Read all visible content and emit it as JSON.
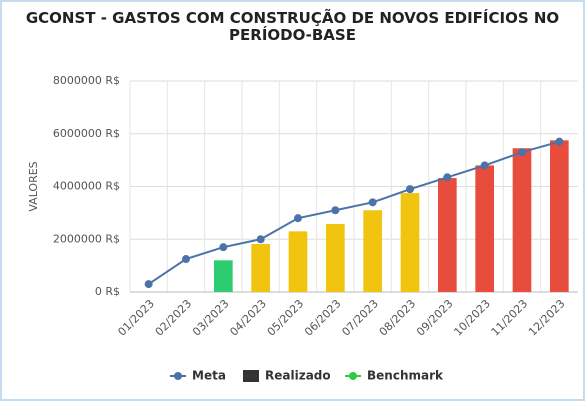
{
  "chart_data": {
    "type": "bar-line",
    "title": "GCONST - GASTOS COM CONSTRUÇÃO DE NOVOS EDIFÍCIOS NO PERÍODO-BASE",
    "ylabel": "VALORES",
    "categories": [
      "01/2023",
      "02/2023",
      "03/2023",
      "04/2023",
      "05/2023",
      "06/2023",
      "07/2023",
      "08/2023",
      "09/2023",
      "10/2023",
      "11/2023",
      "12/2023"
    ],
    "ylim": [
      0,
      8000000
    ],
    "yticks": [
      {
        "value": 0,
        "label": "0 R$"
      },
      {
        "value": 2000000,
        "label": "2000000 R$"
      },
      {
        "value": 4000000,
        "label": "4000000 R$"
      },
      {
        "value": 6000000,
        "label": "6000000 R$"
      },
      {
        "value": 8000000,
        "label": "8000000 R$"
      }
    ],
    "grid": true,
    "legend": "bottom",
    "series": [
      {
        "name": "Meta",
        "kind": "line",
        "color": "#4a74a8",
        "values": [
          300000,
          1250000,
          1700000,
          2000000,
          2800000,
          3100000,
          3400000,
          3900000,
          4350000,
          4800000,
          5300000,
          5700000
        ]
      },
      {
        "name": "Realizado",
        "kind": "bar",
        "color": "#333333",
        "colors": [
          null,
          null,
          "#2ecc71",
          "#f1c40f",
          "#f1c40f",
          "#f1c40f",
          "#f1c40f",
          "#f1c40f",
          "#e74c3c",
          "#e74c3c",
          "#e74c3c",
          "#e74c3c"
        ],
        "values": [
          null,
          null,
          1200000,
          1820000,
          2300000,
          2580000,
          3100000,
          3750000,
          4320000,
          4800000,
          5450000,
          5750000
        ]
      },
      {
        "name": "Benchmark",
        "kind": "line",
        "color": "#2ecc40",
        "values": [
          null,
          null,
          null,
          null,
          null,
          null,
          null,
          null,
          null,
          null,
          null,
          null
        ]
      }
    ]
  }
}
